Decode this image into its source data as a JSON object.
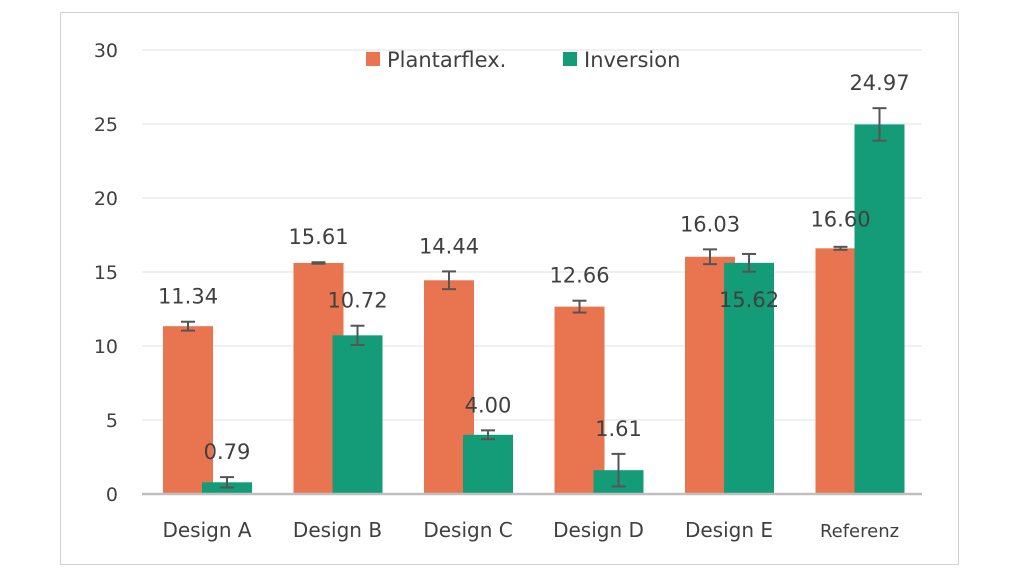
{
  "chart_data": {
    "type": "bar",
    "title": "",
    "xlabel": "",
    "ylabel": "",
    "ylim": [
      0,
      30
    ],
    "yticks": [
      0,
      5,
      10,
      15,
      20,
      25,
      30
    ],
    "grid": true,
    "legend_position": "top-center",
    "categories": [
      "Design A",
      "Design B",
      "Design C",
      "Design D",
      "Design E",
      "Referenz"
    ],
    "series": [
      {
        "name": "Plantarflex.",
        "color": "#E8754F",
        "values": [
          11.34,
          15.61,
          14.44,
          12.66,
          16.03,
          16.6
        ],
        "labels": [
          "11.34",
          "15.61",
          "14.44",
          "12.66",
          "16.03",
          "16.60"
        ],
        "errors": [
          0.3,
          0.05,
          0.6,
          0.4,
          0.5,
          0.1
        ]
      },
      {
        "name": "Inversion",
        "color": "#149B78",
        "values": [
          0.79,
          10.72,
          4.0,
          1.61,
          15.62,
          24.97
        ],
        "labels": [
          "0.79",
          "10.72",
          "4.00",
          "1.61",
          "15.62",
          "24.97"
        ],
        "errors": [
          0.35,
          0.65,
          0.3,
          1.1,
          0.6,
          1.1
        ]
      }
    ]
  }
}
